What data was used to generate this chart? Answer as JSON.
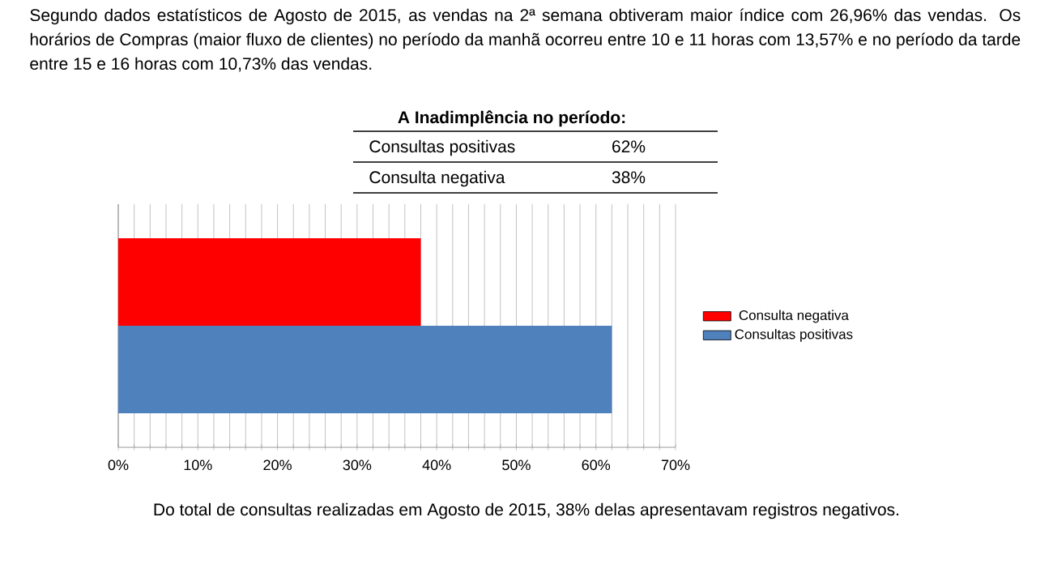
{
  "chart_data": {
    "type": "bar",
    "orientation": "horizontal",
    "categories": [
      null
    ],
    "series": [
      {
        "name": "Consultas positivas",
        "color": "#4f81bd",
        "values": [
          62
        ]
      },
      {
        "name": "Consulta negativa",
        "color": "#ff0000",
        "values": [
          38
        ]
      }
    ],
    "xlim": [
      0,
      70
    ],
    "xticks": [
      {
        "value": 0,
        "label": "0%"
      },
      {
        "value": 2,
        "label": null
      },
      {
        "value": 4,
        "label": null
      },
      {
        "value": 6,
        "label": null
      },
      {
        "value": 8,
        "label": null
      },
      {
        "value": 10,
        "label": "10%"
      },
      {
        "value": 12,
        "label": null
      },
      {
        "value": 14,
        "label": null
      },
      {
        "value": 16,
        "label": null
      },
      {
        "value": 18,
        "label": null
      },
      {
        "value": 20,
        "label": "20%"
      },
      {
        "value": 22,
        "label": null
      },
      {
        "value": 24,
        "label": null
      },
      {
        "value": 26,
        "label": null
      },
      {
        "value": 28,
        "label": null
      },
      {
        "value": 30,
        "label": "30%"
      },
      {
        "value": 32,
        "label": null
      },
      {
        "value": 34,
        "label": null
      },
      {
        "value": 36,
        "label": null
      },
      {
        "value": 38,
        "label": null
      },
      {
        "value": 40,
        "label": "40%"
      },
      {
        "value": 42,
        "label": null
      },
      {
        "value": 44,
        "label": null
      },
      {
        "value": 46,
        "label": null
      },
      {
        "value": 48,
        "label": null
      },
      {
        "value": 50,
        "label": "50%"
      },
      {
        "value": 52,
        "label": null
      },
      {
        "value": 54,
        "label": null
      },
      {
        "value": 56,
        "label": null
      },
      {
        "value": 58,
        "label": null
      },
      {
        "value": 60,
        "label": "60%"
      },
      {
        "value": 62,
        "label": null
      },
      {
        "value": 64,
        "label": null
      },
      {
        "value": 66,
        "label": null
      },
      {
        "value": 68,
        "label": null
      },
      {
        "value": 70,
        "label": "70%"
      }
    ],
    "grid": "x",
    "legend": "right",
    "annotations": [
      "Segundo dados estatísticos de Agosto de 2015, as vendas na 2ª semana obtiveram maior índice com 26,96% das vendas. Os horários de Compras (maior fluxo de clientes) no período da manhã ocorreu entre 10 e 11 horas com 13,57% e no período da tarde entre 15 e 16 horas com 10,73% das vendas.",
      "A Inadimplência no período:",
      "62%",
      "38%",
      "Do total de consultas realizadas em Agosto de 2015, 38% delas apresentavam registros negativos."
    ]
  }
}
